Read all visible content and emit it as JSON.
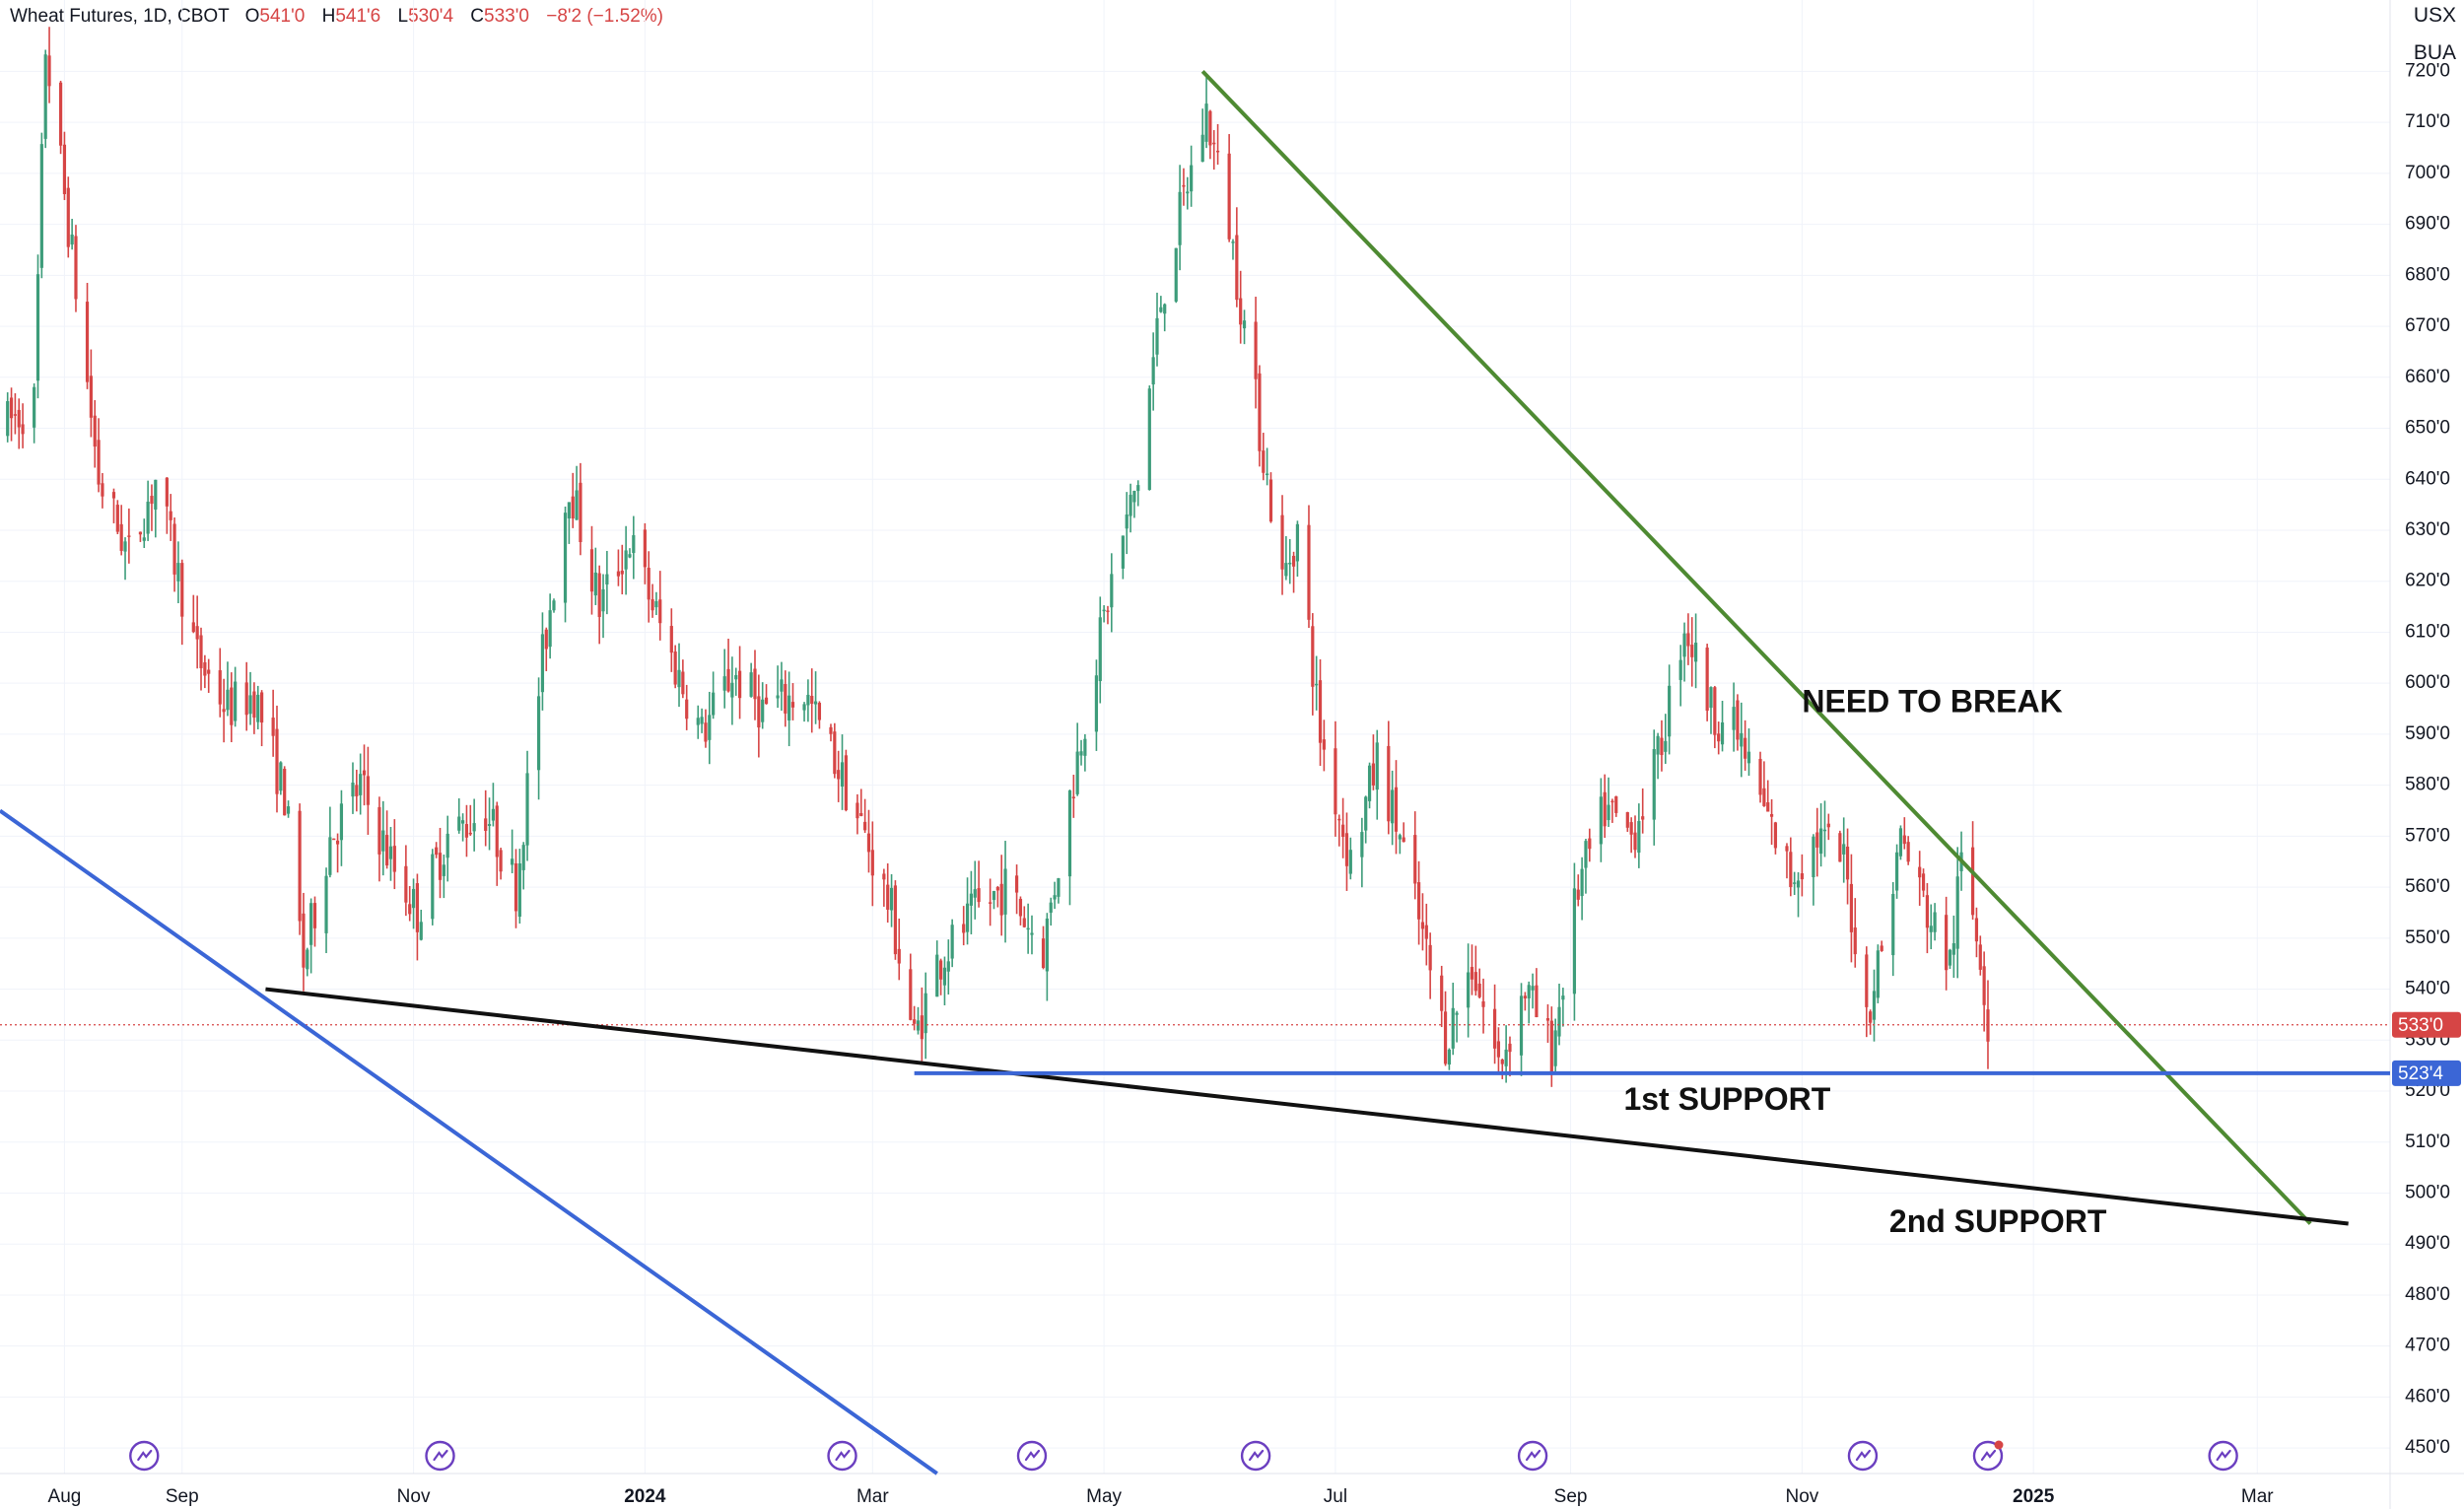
{
  "header": {
    "symbol": "Wheat Futures, 1D, CBOT",
    "o_label": "O",
    "o_value": "541'0",
    "h_label": "H",
    "h_value": "541'6",
    "l_label": "L",
    "l_value": "530'4",
    "c_label": "C",
    "c_value": "533'0",
    "change": "−8'2 (−1.52%)"
  },
  "scale_labels": {
    "currency": "USX",
    "unit": "BUA"
  },
  "colors": {
    "up": "#3d9c7a",
    "down": "#d64545",
    "resistance": "#4e8a32",
    "support": "#3b66d6",
    "trend": "#111111",
    "icon": "#6b3fc0"
  },
  "chart_data": {
    "type": "candlestick",
    "title": "Wheat Futures, 1D, CBOT",
    "ylim": [
      445,
      734
    ],
    "y_ticks": [
      450,
      460,
      470,
      480,
      490,
      500,
      510,
      520,
      530,
      540,
      550,
      560,
      570,
      580,
      590,
      600,
      610,
      620,
      630,
      640,
      650,
      660,
      670,
      680,
      690,
      700,
      710,
      720
    ],
    "y_tick_labels": [
      "450'0",
      "460'0",
      "470'0",
      "480'0",
      "490'0",
      "500'0",
      "510'0",
      "520'0",
      "530'0",
      "540'0",
      "550'0",
      "560'0",
      "570'0",
      "580'0",
      "590'0",
      "600'0",
      "610'0",
      "620'0",
      "630'0",
      "640'0",
      "650'0",
      "660'0",
      "670'0",
      "680'0",
      "690'0",
      "700'0",
      "710'0",
      "720'0"
    ],
    "x_range": [
      "2023-07-15",
      "2025-04-05"
    ],
    "x_ticks": [
      {
        "date": "2023-08-01",
        "label": "Aug"
      },
      {
        "date": "2023-09-01",
        "label": "Sep"
      },
      {
        "date": "2023-11-01",
        "label": "Nov"
      },
      {
        "date": "2024-01-01",
        "label": "2024",
        "bold": true
      },
      {
        "date": "2024-03-01",
        "label": "Mar"
      },
      {
        "date": "2024-05-01",
        "label": "May"
      },
      {
        "date": "2024-07-01",
        "label": "Jul"
      },
      {
        "date": "2024-09-01",
        "label": "Sep"
      },
      {
        "date": "2024-11-01",
        "label": "Nov"
      },
      {
        "date": "2025-01-01",
        "label": "2025",
        "bold": true
      },
      {
        "date": "2025-03-01",
        "label": "Mar"
      }
    ],
    "price_path": [
      [
        "2023-07-15",
        650
      ],
      [
        "2023-07-24",
        655
      ],
      [
        "2023-07-27",
        725
      ],
      [
        "2023-08-02",
        690
      ],
      [
        "2023-08-10",
        640
      ],
      [
        "2023-08-18",
        625
      ],
      [
        "2023-08-25",
        640
      ],
      [
        "2023-09-05",
        605
      ],
      [
        "2023-09-13",
        595
      ],
      [
        "2023-09-20",
        598
      ],
      [
        "2023-09-28",
        578
      ],
      [
        "2023-10-03",
        545
      ],
      [
        "2023-10-10",
        570
      ],
      [
        "2023-10-18",
        580
      ],
      [
        "2023-10-26",
        565
      ],
      [
        "2023-11-02",
        555
      ],
      [
        "2023-11-10",
        570
      ],
      [
        "2023-11-20",
        575
      ],
      [
        "2023-11-28",
        560
      ],
      [
        "2023-12-05",
        605
      ],
      [
        "2023-12-12",
        640
      ],
      [
        "2023-12-20",
        615
      ],
      [
        "2023-12-28",
        628
      ],
      [
        "2024-01-08",
        605
      ],
      [
        "2024-01-16",
        590
      ],
      [
        "2024-01-24",
        602
      ],
      [
        "2024-02-01",
        595
      ],
      [
        "2024-02-12",
        598
      ],
      [
        "2024-02-20",
        585
      ],
      [
        "2024-02-28",
        570
      ],
      [
        "2024-03-06",
        555
      ],
      [
        "2024-03-12",
        530
      ],
      [
        "2024-03-18",
        545
      ],
      [
        "2024-03-28",
        555
      ],
      [
        "2024-04-05",
        560
      ],
      [
        "2024-04-15",
        548
      ],
      [
        "2024-04-25",
        590
      ],
      [
        "2024-05-03",
        620
      ],
      [
        "2024-05-10",
        640
      ],
      [
        "2024-05-16",
        675
      ],
      [
        "2024-05-22",
        695
      ],
      [
        "2024-05-28",
        712
      ],
      [
        "2024-06-03",
        690
      ],
      [
        "2024-06-10",
        655
      ],
      [
        "2024-06-17",
        620
      ],
      [
        "2024-06-21",
        630
      ],
      [
        "2024-06-27",
        590
      ],
      [
        "2024-07-05",
        565
      ],
      [
        "2024-07-12",
        585
      ],
      [
        "2024-07-18",
        570
      ],
      [
        "2024-07-24",
        550
      ],
      [
        "2024-07-30",
        530
      ],
      [
        "2024-08-06",
        545
      ],
      [
        "2024-08-13",
        525
      ],
      [
        "2024-08-20",
        540
      ],
      [
        "2024-08-27",
        528
      ],
      [
        "2024-09-03",
        560
      ],
      [
        "2024-09-10",
        575
      ],
      [
        "2024-09-17",
        570
      ],
      [
        "2024-09-24",
        585
      ],
      [
        "2024-10-01",
        612
      ],
      [
        "2024-10-08",
        595
      ],
      [
        "2024-10-15",
        590
      ],
      [
        "2024-10-22",
        575
      ],
      [
        "2024-10-29",
        562
      ],
      [
        "2024-11-05",
        570
      ],
      [
        "2024-11-12",
        565
      ],
      [
        "2024-11-18",
        535
      ],
      [
        "2024-11-22",
        548
      ],
      [
        "2024-11-27",
        570
      ],
      [
        "2024-12-04",
        555
      ],
      [
        "2024-12-10",
        545
      ],
      [
        "2024-12-13",
        565
      ],
      [
        "2024-12-18",
        548
      ],
      [
        "2024-12-20",
        533
      ]
    ],
    "current_price": {
      "value": 533.0,
      "label": "533'0"
    },
    "support_level": {
      "value": 523.5,
      "label": "523'4"
    },
    "drawings": [
      {
        "name": "green-resistance-line",
        "color": "#4e8a32",
        "points": [
          [
            "2024-05-27",
            720
          ],
          [
            "2025-03-15",
            494
          ]
        ]
      },
      {
        "name": "black-support-line",
        "color": "#111111",
        "points": [
          [
            "2023-09-23",
            540
          ],
          [
            "2025-03-25",
            494
          ]
        ]
      },
      {
        "name": "blue-horizontal-support",
        "color": "#3b66d6",
        "points": [
          [
            "2024-03-12",
            523.5
          ],
          [
            "2025-04-05",
            523.5
          ]
        ]
      },
      {
        "name": "blue-long-trendline",
        "color": "#3b66d6",
        "points": [
          [
            "2023-07-15",
            575
          ],
          [
            "2024-03-18",
            445
          ]
        ]
      }
    ],
    "annotations": [
      {
        "name": "annotation-need-to-break",
        "text": "NEED TO BREAK",
        "date": "2024-11-01",
        "value": 596
      },
      {
        "name": "annotation-1st-support",
        "text": "1st SUPPORT",
        "date": "2024-09-15",
        "value": 518
      },
      {
        "name": "annotation-2nd-support",
        "text": "2nd SUPPORT",
        "date": "2024-11-24",
        "value": 494
      }
    ],
    "event_markers": [
      {
        "date": "2023-08-22"
      },
      {
        "date": "2023-11-08"
      },
      {
        "date": "2024-02-22"
      },
      {
        "date": "2024-04-12"
      },
      {
        "date": "2024-06-10"
      },
      {
        "date": "2024-08-22"
      },
      {
        "date": "2024-11-17"
      },
      {
        "date": "2024-12-20",
        "alert": true
      },
      {
        "date": "2025-02-20"
      }
    ]
  }
}
